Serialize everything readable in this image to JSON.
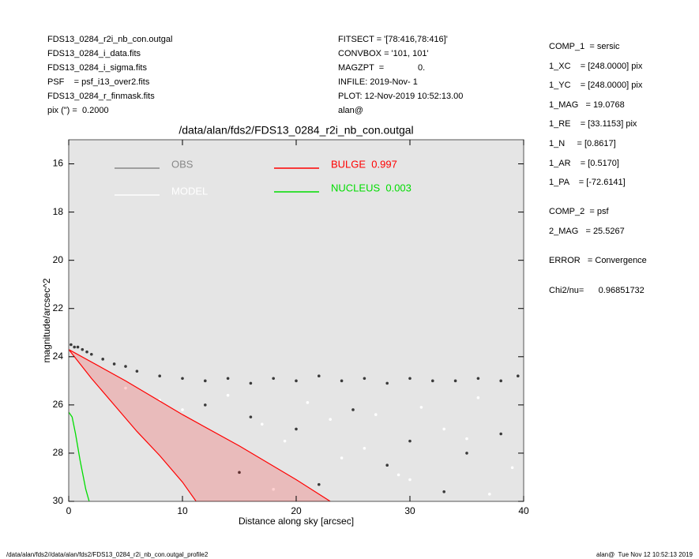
{
  "header": {
    "left": [
      "FDS13_0284_r2i_nb_con.outgal",
      "FDS13_0284_i_data.fits",
      "FDS13_0284_i_sigma.fits",
      "PSF    = psf_i13_over2.fits",
      "FDS13_0284_r_finmask.fits",
      "pix (\") =  0.2000"
    ],
    "middle": [
      "FITSECT = '[78:416,78:416]'",
      "CONVBOX = '101, 101'",
      "MAGZPT  =              0.",
      "INFILE: 2019-Nov- 1",
      "PLOT: 12-Nov-2019 10:52:13.00",
      "alan@"
    ],
    "right": [
      "COMP_1  = sersic",
      "1_XC    = [248.0000] pix",
      "1_YC    = [248.0000] pix",
      "1_MAG   = 19.0768",
      "1_RE    = [33.1153] pix",
      "1_N     = [0.8617]",
      "1_AR    = [0.5170]",
      "1_PA    = [-72.6141]",
      "COMP_2  = psf",
      "2_MAG   = 25.5267",
      "ERROR   = Convergence",
      "Chi2/nu=      0.96851732"
    ]
  },
  "footer": {
    "left": "/data/alan/fds2//data/alan/fds2/FDS13_0284_r2i_nb_con.outgal_profile2",
    "right": "alan@  Tue Nov 12 10:52:13 2019"
  },
  "chart_data": {
    "type": "scatter",
    "title": "/data/alan/fds2/FDS13_0284_r2i_nb_con.outgal",
    "x_label": "Distance along sky [arcsec]",
    "y_label": "magnitude/arcsec^2",
    "xlim": [
      0,
      40
    ],
    "xticks": [
      0,
      10,
      20,
      30,
      40
    ],
    "ylim": [
      15,
      30
    ],
    "y_inverted": true,
    "yticks": [
      16,
      18,
      20,
      22,
      24,
      26,
      28,
      30
    ],
    "background": "#e5e5e5",
    "series": [
      {
        "name": "OBS",
        "kind": "points",
        "color": "#3a3a3a",
        "legend_color": "#888888",
        "x": [
          0.2,
          0.5,
          0.8,
          1.2,
          1.6,
          2,
          3,
          4,
          5,
          6,
          8,
          10,
          12,
          14,
          16,
          18,
          20,
          22,
          24,
          26,
          28,
          30,
          32,
          34,
          36,
          38,
          39.5,
          12,
          16,
          20,
          25,
          30,
          35,
          15,
          22,
          28,
          33,
          38
        ],
        "values": [
          23.5,
          23.6,
          23.6,
          23.7,
          23.8,
          23.9,
          24.1,
          24.3,
          24.4,
          24.6,
          24.8,
          24.9,
          25.0,
          24.9,
          25.1,
          24.9,
          25.0,
          24.8,
          25.0,
          24.9,
          25.1,
          24.9,
          25.0,
          25.0,
          24.9,
          25.0,
          24.8,
          26.0,
          26.5,
          27.0,
          26.2,
          27.5,
          28.0,
          28.8,
          29.3,
          28.5,
          29.6,
          27.2
        ]
      },
      {
        "name": "MODEL",
        "kind": "points",
        "color": "#ffffff",
        "legend_color": "#ffffff",
        "x": [
          5,
          8,
          10,
          14,
          17,
          19,
          21,
          24,
          27,
          30,
          33,
          36,
          39,
          18,
          26,
          31,
          37,
          23,
          29,
          35
        ],
        "values": [
          25.3,
          25.8,
          26.2,
          25.6,
          26.8,
          27.5,
          25.9,
          28.2,
          26.4,
          29.1,
          27.0,
          25.7,
          28.6,
          29.5,
          27.8,
          26.1,
          29.7,
          26.6,
          28.9,
          27.4
        ]
      },
      {
        "name": "BULGE  0.997",
        "kind": "band",
        "color": "#ff0000",
        "legend_color": "#ff0000",
        "x": [
          0,
          2,
          4,
          6,
          8,
          10,
          11.2
        ],
        "values": [
          23.7,
          24.9,
          26.0,
          27.1,
          28.1,
          29.2,
          30
        ],
        "x_outer": [
          0,
          5,
          10,
          15,
          20,
          23
        ],
        "values_outer": [
          23.7,
          25.0,
          26.4,
          27.7,
          29.1,
          30
        ]
      },
      {
        "name": "NUCLEUS  0.003",
        "kind": "line",
        "color": "#00dd00",
        "legend_color": "#00dd00",
        "x": [
          0,
          0.3,
          0.6,
          1,
          1.5,
          1.8
        ],
        "values": [
          26.3,
          26.5,
          27.2,
          28.3,
          29.5,
          30
        ]
      }
    ]
  }
}
